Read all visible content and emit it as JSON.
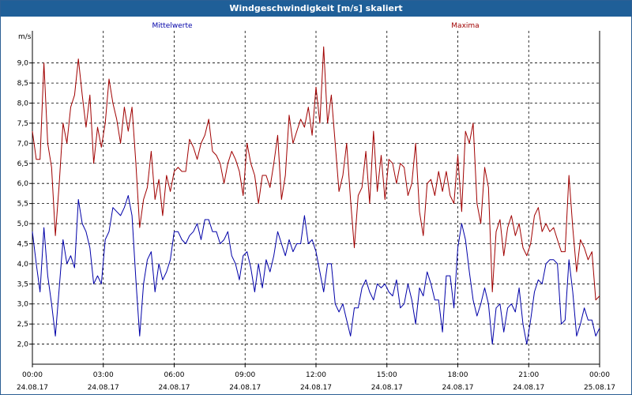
{
  "window": {
    "title": "Windgeschwindigkeit [m/s] skaliert"
  },
  "chart_data": {
    "type": "line",
    "ylabel": "m/s",
    "ylim": [
      1.5,
      9.8
    ],
    "yticks": [
      "2,0",
      "2,5",
      "3,0",
      "3,5",
      "4,0",
      "4,5",
      "5,0",
      "5,5",
      "6,0",
      "6,5",
      "7,0",
      "7,5",
      "8,0",
      "8,5",
      "9,0"
    ],
    "ytick_values": [
      2.0,
      2.5,
      3.0,
      3.5,
      4.0,
      4.5,
      5.0,
      5.5,
      6.0,
      6.5,
      7.0,
      7.5,
      8.0,
      8.5,
      9.0
    ],
    "xlim": [
      0,
      24
    ],
    "xticks": [
      {
        "time": "00:00",
        "date": "24.08.17"
      },
      {
        "time": "03:00",
        "date": "24.08.17"
      },
      {
        "time": "06:00",
        "date": "24.08.17"
      },
      {
        "time": "09:00",
        "date": "24.08.17"
      },
      {
        "time": "12:00",
        "date": "24.08.17"
      },
      {
        "time": "15:00",
        "date": "24.08.17"
      },
      {
        "time": "18:00",
        "date": "24.08.17"
      },
      {
        "time": "21:00",
        "date": "24.08.17"
      },
      {
        "time": "00:00",
        "date": "25.08.17"
      }
    ],
    "grid": true,
    "series": [
      {
        "name": "Mittelwerte",
        "color": "#0000a8",
        "values": [
          4.8,
          4.0,
          3.3,
          4.9,
          3.7,
          3.0,
          2.2,
          3.4,
          4.6,
          4.0,
          4.2,
          3.9,
          5.6,
          5.0,
          4.8,
          4.4,
          3.5,
          3.7,
          3.5,
          4.6,
          4.8,
          5.4,
          5.3,
          5.2,
          5.4,
          5.7,
          5.2,
          3.6,
          2.2,
          3.5,
          4.1,
          4.3,
          3.3,
          4.0,
          3.6,
          3.8,
          4.1,
          4.8,
          4.8,
          4.6,
          4.5,
          4.7,
          4.8,
          5.0,
          4.6,
          5.1,
          5.1,
          4.8,
          4.8,
          4.5,
          4.6,
          4.8,
          4.2,
          4.0,
          3.6,
          4.2,
          4.3,
          3.9,
          3.3,
          4.0,
          3.4,
          4.1,
          3.8,
          4.2,
          4.8,
          4.5,
          4.2,
          4.6,
          4.3,
          4.5,
          4.5,
          5.2,
          4.5,
          4.6,
          4.3,
          3.8,
          3.3,
          4.0,
          4.0,
          3.0,
          2.8,
          3.0,
          2.6,
          2.2,
          2.9,
          2.9,
          3.4,
          3.6,
          3.3,
          3.1,
          3.5,
          3.4,
          3.5,
          3.3,
          3.2,
          3.6,
          2.9,
          3.0,
          3.5,
          3.1,
          2.5,
          3.4,
          3.2,
          3.8,
          3.5,
          3.1,
          3.1,
          2.3,
          3.7,
          3.7,
          2.9,
          4.4,
          5.0,
          4.6,
          3.8,
          3.1,
          2.7,
          3.0,
          3.4,
          3.0,
          2.0,
          2.9,
          3.0,
          2.3,
          2.9,
          3.0,
          2.8,
          3.4,
          2.5,
          2.0,
          2.6,
          3.3,
          3.6,
          3.5,
          4.0,
          4.1,
          4.1,
          4.0,
          2.5,
          2.6,
          4.1,
          3.3,
          2.2,
          2.5,
          2.9,
          2.6,
          2.6,
          2.2,
          2.4
        ]
      },
      {
        "name": "Maxima",
        "color": "#a00000",
        "values": [
          7.3,
          6.6,
          6.6,
          9.0,
          7.0,
          6.4,
          4.7,
          6.0,
          7.5,
          7.0,
          7.9,
          8.2,
          9.1,
          8.2,
          7.4,
          8.2,
          6.5,
          7.4,
          6.9,
          7.5,
          8.6,
          8.0,
          7.6,
          7.0,
          7.9,
          7.3,
          7.9,
          6.5,
          4.9,
          5.6,
          5.9,
          6.8,
          5.6,
          6.1,
          5.2,
          6.2,
          5.8,
          6.3,
          6.4,
          6.3,
          6.3,
          7.1,
          6.9,
          6.6,
          7.0,
          7.2,
          7.6,
          6.8,
          6.7,
          6.5,
          6.0,
          6.5,
          6.8,
          6.6,
          6.3,
          5.7,
          7.0,
          6.5,
          6.2,
          5.5,
          6.2,
          6.2,
          5.9,
          6.5,
          7.2,
          5.6,
          6.2,
          7.7,
          7.0,
          7.3,
          7.6,
          7.4,
          7.9,
          7.2,
          8.4,
          7.5,
          9.4,
          7.5,
          8.2,
          7.0,
          5.8,
          6.2,
          7.0,
          5.6,
          4.4,
          5.7,
          5.9,
          6.8,
          5.5,
          7.3,
          5.8,
          6.7,
          5.6,
          6.6,
          6.5,
          6.0,
          6.5,
          6.4,
          5.7,
          6.0,
          7.0,
          5.3,
          4.7,
          6.0,
          6.1,
          5.7,
          6.3,
          5.8,
          6.3,
          5.7,
          5.5,
          6.7,
          5.3,
          7.3,
          7.0,
          7.5,
          5.5,
          5.0,
          6.4,
          5.9,
          3.3,
          4.8,
          5.1,
          4.2,
          4.9,
          5.2,
          4.7,
          5.0,
          4.4,
          4.2,
          4.5,
          5.2,
          5.4,
          4.8,
          5.0,
          4.8,
          4.9,
          4.6,
          4.3,
          4.3,
          6.2,
          4.9,
          3.8,
          4.6,
          4.4,
          4.1,
          4.3,
          3.1,
          3.2
        ]
      }
    ]
  }
}
